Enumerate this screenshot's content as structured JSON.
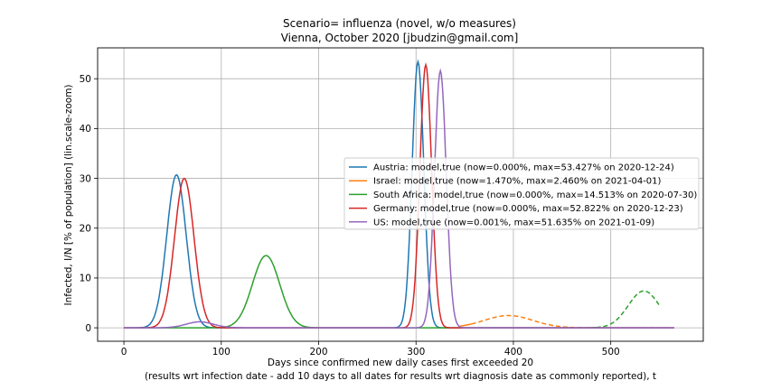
{
  "chart_data": {
    "type": "line",
    "title": "Scenario= influenza (novel, w/o measures)",
    "subtitle": "Vienna, October 2020 [jbudzin@gmail.com]",
    "xlabel_line1": "Days since confirmed new daily cases first exceeded 20",
    "xlabel_line2": "(results wrt infection date - add 10 days to all dates for results wrt diagnosis date as commonly reported), t",
    "ylabel": "Infected, I/N [% of population] (lin.scale-zoom)",
    "xlim": [
      -27,
      595
    ],
    "ylim": [
      -2.7,
      56.2
    ],
    "xticks": [
      0,
      100,
      200,
      300,
      400,
      500
    ],
    "yticks": [
      0,
      10,
      20,
      30,
      40,
      50
    ],
    "grid": true,
    "legend_position": "center-right",
    "series": [
      {
        "name": "Austria: model,true (now=0.000%, max=53.427% on 2020-12-24)",
        "color": "#1f77b4",
        "x_range": [
          0,
          565
        ],
        "peaks": [
          {
            "x": 54,
            "y": 30.7,
            "w": 10
          },
          {
            "x": 302,
            "y": 53.4,
            "w": 6
          }
        ],
        "dashed_after": 565
      },
      {
        "name": "Israel: model,true (now=1.470%, max=2.460% on 2021-04-01)",
        "color": "#ff7f0e",
        "x_range": [
          345,
          565
        ],
        "peaks": [
          {
            "x": 395,
            "y": 2.46,
            "w": 25
          }
        ],
        "dashed_after": 357
      },
      {
        "name": "South Africa: model,true (now=0.000%, max=14.513% on 2020-07-30)",
        "color": "#2ca02c",
        "x_range": [
          0,
          550
        ],
        "peaks": [
          {
            "x": 146,
            "y": 14.5,
            "w": 14
          },
          {
            "x": 534,
            "y": 7.4,
            "w": 16
          }
        ],
        "dashed_after": 485
      },
      {
        "name": "Germany: model,true (now=0.000%, max=52.822% on 2020-12-23)",
        "color": "#d62728",
        "x_range": [
          0,
          565
        ],
        "peaks": [
          {
            "x": 62,
            "y": 30.0,
            "w": 10
          },
          {
            "x": 310,
            "y": 52.8,
            "w": 6
          }
        ],
        "dashed_after": 565
      },
      {
        "name": "US: model,true (now=0.001%, max=51.635% on 2021-01-09)",
        "color": "#9467bd",
        "x_range": [
          0,
          565
        ],
        "peaks": [
          {
            "x": 78,
            "y": 1.2,
            "w": 14
          },
          {
            "x": 325,
            "y": 51.6,
            "w": 6
          }
        ],
        "dashed_after": 565
      }
    ]
  }
}
